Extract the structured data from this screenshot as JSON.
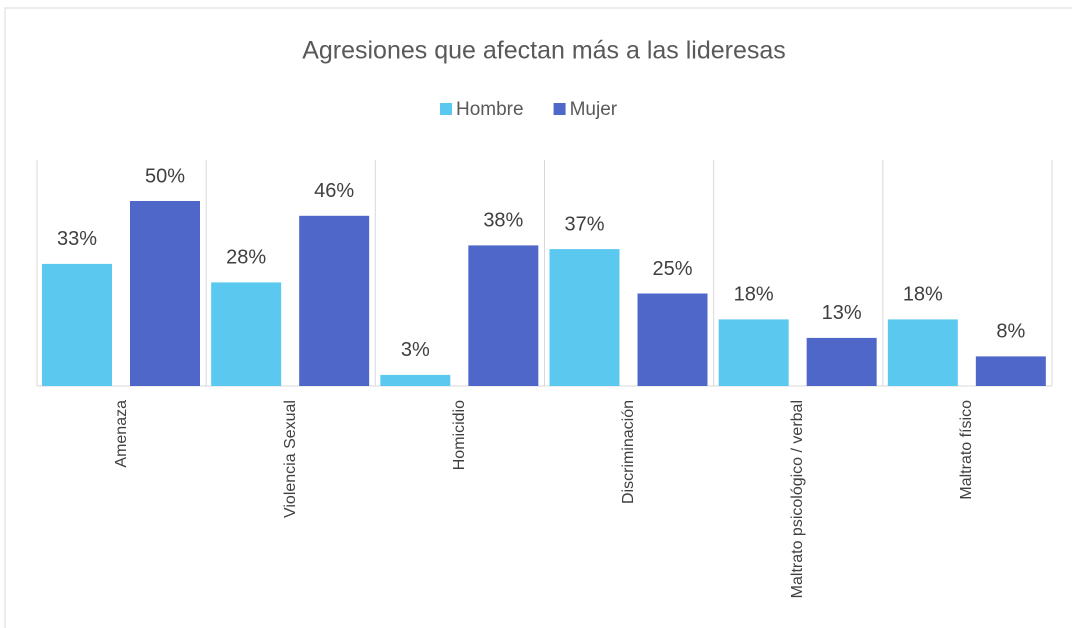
{
  "chart_data": {
    "type": "bar",
    "title": "Agresiones que afectan más a las lideresas",
    "categories": [
      "Amenaza",
      "Violencia Sexual",
      "Homicidio",
      "Discriminación",
      "Maltrato psicológico / verbal",
      "Maltrato físico"
    ],
    "series": [
      {
        "name": "Hombre",
        "color": "#5bc8f0",
        "values": [
          33,
          28,
          3,
          37,
          18,
          18
        ],
        "value_labels": [
          "33%",
          "28%",
          "3%",
          "37%",
          "18%",
          "18%"
        ]
      },
      {
        "name": "Mujer",
        "color": "#4f67c8",
        "values": [
          50,
          46,
          38,
          25,
          13,
          8
        ],
        "value_labels": [
          "50%",
          "46%",
          "38%",
          "25%",
          "13%",
          "8%"
        ]
      }
    ],
    "legend": "top"
  }
}
